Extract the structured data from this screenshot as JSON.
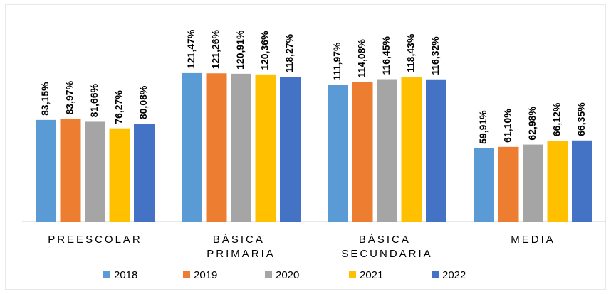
{
  "chart_data": {
    "type": "bar",
    "categories": [
      "PREESCOLAR",
      "BÁSICA PRIMARIA",
      "BÁSICA SECUNDARIA",
      "MEDIA"
    ],
    "series": [
      {
        "name": "2018",
        "color": "#5b9bd5",
        "values": [
          83.15,
          121.47,
          111.97,
          59.91
        ],
        "value_labels": [
          "83,15%",
          "121,47%",
          "111,97%",
          "59,91%"
        ]
      },
      {
        "name": "2019",
        "color": "#ed7d31",
        "values": [
          83.97,
          121.26,
          114.08,
          61.1
        ],
        "value_labels": [
          "83,97%",
          "121,26%",
          "114,08%",
          "61,10%"
        ]
      },
      {
        "name": "2020",
        "color": "#a5a5a5",
        "values": [
          81.66,
          120.91,
          116.45,
          62.98
        ],
        "value_labels": [
          "81,66%",
          "120,91%",
          "116,45%",
          "62,98%"
        ]
      },
      {
        "name": "2021",
        "color": "#ffc000",
        "values": [
          76.27,
          120.36,
          118.43,
          66.12
        ],
        "value_labels": [
          "76,27%",
          "120,36%",
          "118,43%",
          "66,12%"
        ]
      },
      {
        "name": "2022",
        "color": "#4472c4",
        "values": [
          80.08,
          118.27,
          116.32,
          66.35
        ],
        "value_labels": [
          "80,08%",
          "118,27%",
          "116,32%",
          "66,35%"
        ]
      }
    ],
    "ylim": [
      0,
      140
    ],
    "legend": "bottom"
  }
}
